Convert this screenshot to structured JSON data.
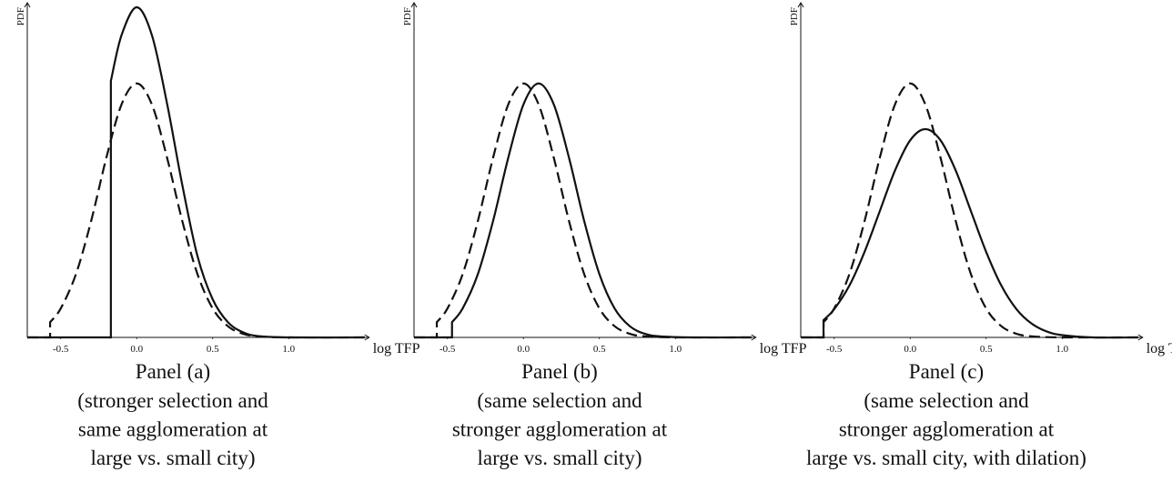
{
  "chart_data": [
    {
      "type": "line",
      "title": "Panel (a)",
      "caption_lines": [
        "(stronger selection and",
        "same agglomeration at",
        "large vs. small city)"
      ],
      "xlabel": "log TFP",
      "ylabel": "PDF",
      "xlim": [
        -0.72,
        1.5
      ],
      "ylim": [
        0,
        1.3
      ],
      "xticks": [
        -0.5,
        {
          "value": 0,
          "label": "0.0"
        },
        0.5,
        {
          "value": 1,
          "label": "1.0"
        }
      ],
      "series": [
        {
          "line_style": "dashed",
          "color": "#111111",
          "x": [
            -0.72,
            -0.57,
            -0.57,
            -0.5,
            -0.4,
            -0.3,
            -0.2,
            -0.1,
            0,
            0.1,
            0.2,
            0.3,
            0.4,
            0.5,
            0.6,
            0.7,
            0.8,
            1.0,
            1.5
          ],
          "values": [
            0,
            0,
            0.06,
            0.114,
            0.249,
            0.458,
            0.707,
            0.917,
            1,
            0.917,
            0.707,
            0.458,
            0.249,
            0.114,
            0.044,
            0.014,
            0.004,
            0,
            0
          ]
        },
        {
          "line_style": "solid",
          "color": "#111111",
          "x": [
            -0.72,
            -0.17,
            -0.17,
            -0.1,
            0,
            0.1,
            0.2,
            0.3,
            0.4,
            0.5,
            0.6,
            0.7,
            0.8,
            1.0,
            1.5
          ],
          "values": [
            0,
            0,
            1.01,
            1.19,
            1.3,
            1.19,
            0.92,
            0.6,
            0.32,
            0.15,
            0.06,
            0.02,
            0.005,
            0,
            0
          ]
        }
      ]
    },
    {
      "type": "line",
      "title": "Panel (b)",
      "caption_lines": [
        "(same selection and",
        "stronger agglomeration at",
        "large vs. small city)"
      ],
      "xlabel": "log TFP",
      "ylabel": "PDF",
      "xlim": [
        -0.72,
        1.5
      ],
      "ylim": [
        0,
        1.3
      ],
      "xticks": [
        -0.5,
        {
          "value": 0,
          "label": "0.0"
        },
        0.5,
        {
          "value": 1,
          "label": "1.0"
        }
      ],
      "series": [
        {
          "line_style": "dashed",
          "color": "#111111",
          "x": [
            -0.72,
            -0.57,
            -0.57,
            -0.5,
            -0.4,
            -0.3,
            -0.2,
            -0.1,
            0,
            0.1,
            0.2,
            0.3,
            0.4,
            0.5,
            0.6,
            0.7,
            0.8,
            1.0,
            1.5
          ],
          "values": [
            0,
            0,
            0.06,
            0.114,
            0.249,
            0.458,
            0.707,
            0.917,
            1,
            0.917,
            0.707,
            0.458,
            0.249,
            0.114,
            0.044,
            0.014,
            0.004,
            0,
            0
          ]
        },
        {
          "line_style": "solid",
          "color": "#111111",
          "x": [
            -0.72,
            -0.47,
            -0.47,
            -0.4,
            -0.3,
            -0.2,
            -0.1,
            0,
            0.1,
            0.2,
            0.3,
            0.4,
            0.5,
            0.6,
            0.7,
            0.8,
            0.9,
            1.1,
            1.5
          ],
          "values": [
            0,
            0,
            0.06,
            0.114,
            0.249,
            0.458,
            0.707,
            0.917,
            1,
            0.917,
            0.707,
            0.458,
            0.249,
            0.114,
            0.044,
            0.014,
            0.004,
            0,
            0
          ]
        }
      ]
    },
    {
      "type": "line",
      "title": "Panel (c)",
      "caption_lines": [
        "(same selection and",
        "stronger agglomeration at",
        "large vs. small city, with dilation)"
      ],
      "xlabel": "log TFP",
      "ylabel": "PDF",
      "xlim": [
        -0.72,
        1.5
      ],
      "ylim": [
        0,
        1.3
      ],
      "xticks": [
        -0.5,
        {
          "value": 0,
          "label": "0.0"
        },
        0.5,
        {
          "value": 1,
          "label": "1.0"
        }
      ],
      "series": [
        {
          "line_style": "dashed",
          "color": "#111111",
          "x": [
            -0.72,
            -0.57,
            -0.57,
            -0.5,
            -0.4,
            -0.3,
            -0.2,
            -0.1,
            0,
            0.1,
            0.2,
            0.3,
            0.4,
            0.5,
            0.6,
            0.7,
            0.8,
            1.0,
            1.5
          ],
          "values": [
            0,
            0,
            0.06,
            0.114,
            0.249,
            0.458,
            0.707,
            0.917,
            1,
            0.917,
            0.707,
            0.458,
            0.249,
            0.114,
            0.044,
            0.014,
            0.004,
            0,
            0
          ]
        },
        {
          "line_style": "solid",
          "color": "#111111",
          "x": [
            -0.72,
            -0.57,
            -0.57,
            -0.5,
            -0.4,
            -0.3,
            -0.2,
            -0.1,
            0,
            0.1,
            0.2,
            0.3,
            0.4,
            0.5,
            0.6,
            0.7,
            0.8,
            0.9,
            1.0,
            1.2,
            1.5
          ],
          "values": [
            0,
            0,
            0.068,
            0.111,
            0.204,
            0.337,
            0.497,
            0.657,
            0.776,
            0.82,
            0.776,
            0.657,
            0.497,
            0.337,
            0.204,
            0.111,
            0.054,
            0.023,
            0.009,
            0,
            0
          ]
        }
      ]
    }
  ]
}
